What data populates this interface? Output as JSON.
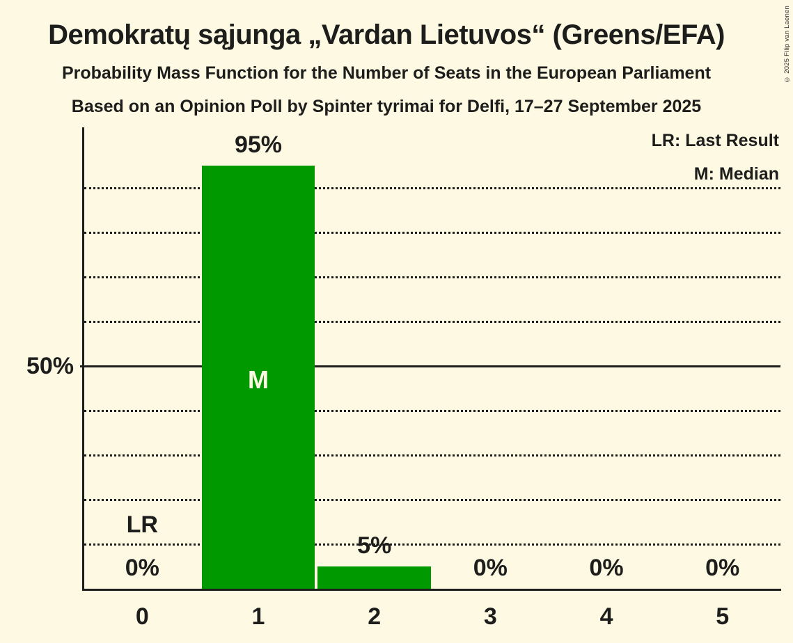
{
  "page": {
    "background_color": "#FDF9E3",
    "text_color": "#1D1D1B",
    "copyright": "© 2025 Filip van Laenen"
  },
  "header": {
    "title": "Demokratų sąjunga „Vardan Lietuvos“ (Greens/EFA)",
    "subtitle1": "Probability Mass Function for the Number of Seats in the European Parliament",
    "subtitle2": "Based on an Opinion Poll by Spinter tyrimai for Delfi, 17–27 September 2025"
  },
  "legend": {
    "last_result": "LR: Last Result",
    "median": "M: Median"
  },
  "chart_data": {
    "type": "bar",
    "title": "Demokratų sąjunga „Vardan Lietuvos“ (Greens/EFA)",
    "subtitle": "Probability Mass Function for the Number of Seats in the European Parliament",
    "categories": [
      "0",
      "1",
      "2",
      "3",
      "4",
      "5"
    ],
    "values": [
      0,
      95,
      5,
      0,
      0,
      0
    ],
    "value_labels": [
      "0%",
      "95%",
      "5%",
      "0%",
      "0%",
      "0%"
    ],
    "xlabel": "",
    "ylabel": "",
    "y_axis_label": "50%",
    "ylim": [
      0,
      103.6
    ],
    "gridlines_percent": [
      10,
      20,
      30,
      40,
      60,
      70,
      80,
      90
    ],
    "solid_line_percent": 50,
    "grid_style": "dotted",
    "legend_position": "top-right",
    "legend_entries": [
      "LR: Last Result",
      "M: Median"
    ],
    "bar_color": "#009A00",
    "median_index": 1,
    "median_label": "M",
    "last_result_index": 0,
    "last_result_label": "LR"
  }
}
